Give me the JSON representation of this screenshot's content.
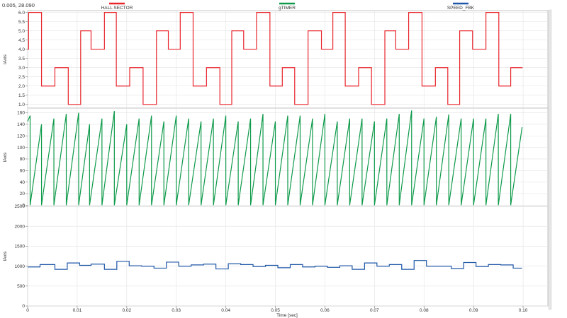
{
  "cursor_readout": "0.005, 28.090",
  "legend": [
    {
      "name": "HALL SECTOR",
      "color": "#e8262c"
    },
    {
      "name": "gTIMER",
      "color": "#0e9a4a"
    },
    {
      "name": "SPEED_FBK",
      "color": "#1f57a8"
    }
  ],
  "chart_data": [
    {
      "type": "line",
      "series_name": "HALL SECTOR",
      "color": "#e8262c",
      "ylabel": "lAxis",
      "ylim": [
        0.8,
        6.1
      ],
      "yticks": [
        "1.0",
        "1.5",
        "2.0",
        "2.5",
        "3.0",
        "3.5",
        "4.0",
        "4.5",
        "5.0",
        "5.5",
        "6.0"
      ],
      "grid": true,
      "x": [
        0,
        0.0002,
        0.0002,
        0.0028,
        0.0028,
        0.0055,
        0.0055,
        0.0082,
        0.0082,
        0.0107,
        0.0107,
        0.0128,
        0.0128,
        0.0155,
        0.0155,
        0.0179,
        0.0179,
        0.0206,
        0.0206,
        0.0233,
        0.0233,
        0.026,
        0.026,
        0.0284,
        0.0284,
        0.0308,
        0.0308,
        0.0334,
        0.0334,
        0.0361,
        0.0361,
        0.0388,
        0.0388,
        0.0412,
        0.0412,
        0.0436,
        0.0436,
        0.0462,
        0.0462,
        0.0489,
        0.0489,
        0.0514,
        0.0514,
        0.0539,
        0.0539,
        0.0566,
        0.0566,
        0.0593,
        0.0593,
        0.0616,
        0.0616,
        0.0641,
        0.0641,
        0.0668,
        0.0668,
        0.0694,
        0.0694,
        0.0721,
        0.0721,
        0.0743,
        0.0743,
        0.0769,
        0.0769,
        0.0796,
        0.0796,
        0.0823,
        0.0823,
        0.0848,
        0.0848,
        0.0872,
        0.0872,
        0.0898,
        0.0898,
        0.0925,
        0.0925,
        0.0951,
        0.0951,
        0.0975,
        0.0975,
        0.0999
      ],
      "y": [
        4,
        4,
        6,
        6,
        2,
        2,
        3,
        3,
        1,
        1,
        5,
        5,
        4,
        4,
        6,
        6,
        2,
        2,
        3,
        3,
        1,
        1,
        5,
        5,
        4,
        4,
        6,
        6,
        2,
        2,
        3,
        3,
        1,
        1,
        5,
        5,
        4,
        4,
        6,
        6,
        2,
        2,
        3,
        3,
        1,
        1,
        5,
        5,
        4,
        4,
        6,
        6,
        2,
        2,
        3,
        3,
        1,
        1,
        5,
        5,
        4,
        4,
        6,
        6,
        2,
        2,
        3,
        3,
        1,
        1,
        5,
        5,
        4,
        4,
        6,
        6,
        2,
        2,
        3,
        3
      ]
    },
    {
      "type": "line",
      "series_name": "gTIMER",
      "color": "#0e9a4a",
      "ylabel": "lAxis",
      "ylim": [
        -2,
        168
      ],
      "yticks": [
        "0",
        "20",
        "40",
        "60",
        "80",
        "100",
        "120",
        "140",
        "160"
      ],
      "grid": true,
      "x": [
        0,
        0.0005,
        0.0005,
        0.0028,
        0.0028,
        0.0053,
        0.0053,
        0.0078,
        0.0078,
        0.0103,
        0.0103,
        0.0125,
        0.0125,
        0.015,
        0.015,
        0.0175,
        0.0175,
        0.02,
        0.02,
        0.0225,
        0.0225,
        0.025,
        0.025,
        0.0275,
        0.0275,
        0.03,
        0.03,
        0.0325,
        0.0325,
        0.035,
        0.035,
        0.0375,
        0.0375,
        0.04,
        0.04,
        0.0425,
        0.0425,
        0.045,
        0.045,
        0.0475,
        0.0475,
        0.05,
        0.05,
        0.0525,
        0.0525,
        0.055,
        0.055,
        0.0575,
        0.0575,
        0.06,
        0.06,
        0.0625,
        0.0625,
        0.065,
        0.065,
        0.0675,
        0.0675,
        0.07,
        0.07,
        0.0725,
        0.0725,
        0.075,
        0.075,
        0.0775,
        0.0775,
        0.08,
        0.08,
        0.0825,
        0.0825,
        0.085,
        0.085,
        0.0875,
        0.0875,
        0.09,
        0.09,
        0.0925,
        0.0925,
        0.095,
        0.095,
        0.0975,
        0.0975,
        0.0998
      ],
      "y": [
        145,
        155,
        0,
        140,
        0,
        150,
        0,
        158,
        0,
        160,
        0,
        140,
        0,
        150,
        0,
        163,
        0,
        140,
        0,
        150,
        0,
        155,
        0,
        145,
        0,
        155,
        0,
        150,
        0,
        145,
        0,
        150,
        0,
        155,
        0,
        145,
        0,
        150,
        0,
        158,
        0,
        145,
        0,
        155,
        0,
        155,
        0,
        150,
        0,
        158,
        0,
        145,
        0,
        150,
        0,
        150,
        0,
        145,
        0,
        150,
        0,
        158,
        0,
        164,
        0,
        150,
        0,
        153,
        0,
        157,
        0,
        150,
        0,
        150,
        0,
        150,
        0,
        158,
        0,
        158,
        0,
        135
      ]
    },
    {
      "type": "line",
      "series_name": "SPEED_FBK",
      "color": "#1f57a8",
      "ylabel": "lAxis",
      "xlabel": "Time [sec]",
      "ylim": [
        0,
        2500
      ],
      "yticks": [
        "0",
        "500",
        "1000",
        "1500",
        "2000",
        "2500"
      ],
      "xticks": [
        "0",
        "0.01",
        "0.02",
        "0.03",
        "0.04",
        "0.05",
        "0.06",
        "0.07",
        "0.08",
        "0.09",
        "0.10"
      ],
      "xlim": [
        0,
        0.105
      ],
      "grid": true,
      "x": [
        0,
        0.0025,
        0.0025,
        0.0055,
        0.0055,
        0.008,
        0.008,
        0.0105,
        0.0105,
        0.0128,
        0.0128,
        0.0155,
        0.0155,
        0.018,
        0.018,
        0.0205,
        0.0205,
        0.023,
        0.023,
        0.0255,
        0.0255,
        0.028,
        0.028,
        0.0305,
        0.0305,
        0.033,
        0.033,
        0.0355,
        0.0355,
        0.038,
        0.038,
        0.0405,
        0.0405,
        0.043,
        0.043,
        0.0455,
        0.0455,
        0.048,
        0.048,
        0.0505,
        0.0505,
        0.053,
        0.053,
        0.0555,
        0.0555,
        0.058,
        0.058,
        0.0605,
        0.0605,
        0.063,
        0.063,
        0.0655,
        0.0655,
        0.068,
        0.068,
        0.0705,
        0.0705,
        0.073,
        0.073,
        0.0755,
        0.0755,
        0.078,
        0.078,
        0.0805,
        0.0805,
        0.083,
        0.083,
        0.0855,
        0.0855,
        0.088,
        0.088,
        0.0905,
        0.0905,
        0.093,
        0.093,
        0.0955,
        0.0955,
        0.098,
        0.098,
        0.0998
      ],
      "y": [
        980,
        980,
        1040,
        1040,
        920,
        920,
        1080,
        1080,
        1020,
        1020,
        1050,
        1050,
        920,
        920,
        1120,
        1120,
        1010,
        1010,
        1000,
        1000,
        950,
        950,
        1100,
        1100,
        1000,
        1000,
        1030,
        1030,
        1050,
        1050,
        930,
        930,
        1060,
        1060,
        1040,
        1040,
        990,
        990,
        1020,
        1020,
        960,
        960,
        1040,
        1040,
        980,
        980,
        1000,
        1000,
        970,
        970,
        1010,
        1010,
        920,
        920,
        1080,
        1080,
        1000,
        1000,
        1040,
        1040,
        920,
        920,
        1140,
        1140,
        1000,
        1000,
        1000,
        1000,
        940,
        940,
        1090,
        1090,
        990,
        990,
        1040,
        1040,
        1030,
        1030,
        950,
        950
      ]
    }
  ]
}
